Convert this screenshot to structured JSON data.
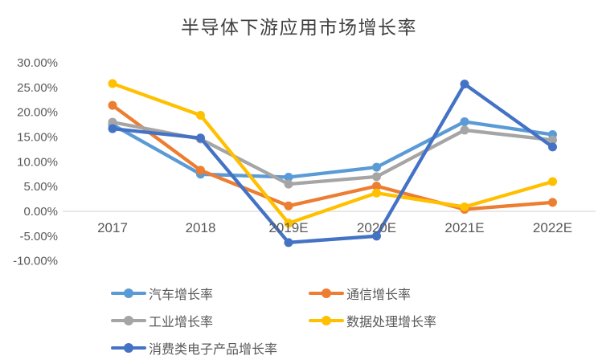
{
  "chart_data": {
    "type": "line",
    "title": "半导体下游应用市场增长率",
    "categories": [
      "2017",
      "2018",
      "2019E",
      "2020E",
      "2021E",
      "2022E"
    ],
    "series": [
      {
        "name": "汽车增长率",
        "color": "#5B9BD5",
        "values": [
          17.5,
          7.5,
          6.9,
          8.9,
          18.1,
          15.5
        ]
      },
      {
        "name": "通信增长率",
        "color": "#ED7D31",
        "values": [
          21.4,
          8.3,
          1.1,
          5.1,
          0.4,
          1.8
        ]
      },
      {
        "name": "工业增长率",
        "color": "#A5A5A5",
        "values": [
          18.0,
          14.6,
          5.5,
          7.0,
          16.4,
          14.4
        ]
      },
      {
        "name": "数据处理增长率",
        "color": "#FFC000",
        "values": [
          25.8,
          19.4,
          -2.4,
          3.7,
          0.9,
          6.0
        ]
      },
      {
        "name": "消费类电子产品增长率",
        "color": "#4472C4",
        "values": [
          16.7,
          14.8,
          -6.3,
          -5.0,
          25.7,
          13.0
        ]
      }
    ],
    "y_axis": {
      "min": -10,
      "max": 30,
      "step": 5,
      "ticks": [
        "30.00%",
        "25.00%",
        "20.00%",
        "15.00%",
        "10.00%",
        "5.00%",
        "0.00%",
        "-5.00%",
        "-10.00%"
      ]
    },
    "xlabel": "",
    "ylabel": "",
    "grid": "zero-line-only",
    "legend_position": "bottom-left",
    "colors": {
      "title_text": "#404040",
      "axis_text": "#595959",
      "zero_line": "#D9D9D9",
      "background": "#FFFFFF"
    }
  }
}
